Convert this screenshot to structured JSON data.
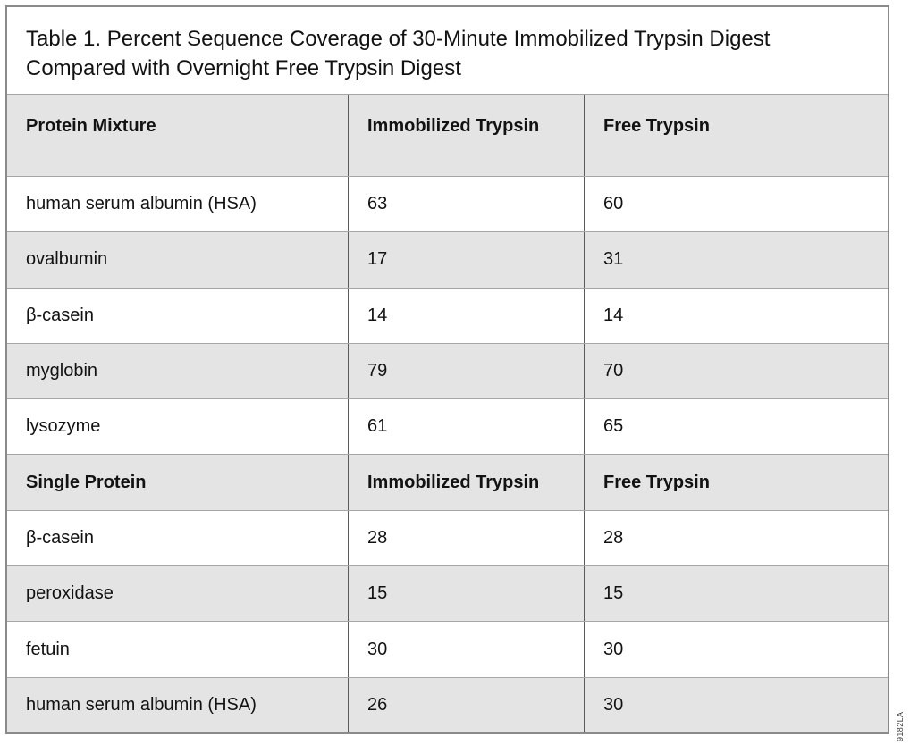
{
  "colors": {
    "row_shade": "#e4e4e4",
    "outer_border": "#8a8a8a",
    "column_line": "#5a5a5a",
    "row_line": "#a6a6a6",
    "text": "#121212"
  },
  "chart_data": {
    "type": "table",
    "title": "Table 1. Percent Sequence Coverage of 30-Minute Immobilized Trypsin Digest Compared with Overnight Free Trypsin Digest",
    "figure_id": "9182LA",
    "sections": [
      {
        "header": [
          "Protein Mixture",
          "Immobilized Trypsin",
          "Free Trypsin"
        ],
        "rows": [
          [
            "human serum albumin (HSA)",
            63,
            60
          ],
          [
            "ovalbumin",
            17,
            31
          ],
          [
            "β-casein",
            14,
            14
          ],
          [
            "myglobin",
            79,
            70
          ],
          [
            "lysozyme",
            61,
            65
          ]
        ]
      },
      {
        "header": [
          "Single Protein",
          "Immobilized Trypsin",
          "Free Trypsin"
        ],
        "rows": [
          [
            "β-casein",
            28,
            28
          ],
          [
            "peroxidase",
            15,
            15
          ],
          [
            "fetuin",
            30,
            30
          ],
          [
            "human serum albumin (HSA)",
            26,
            30
          ]
        ]
      }
    ]
  }
}
